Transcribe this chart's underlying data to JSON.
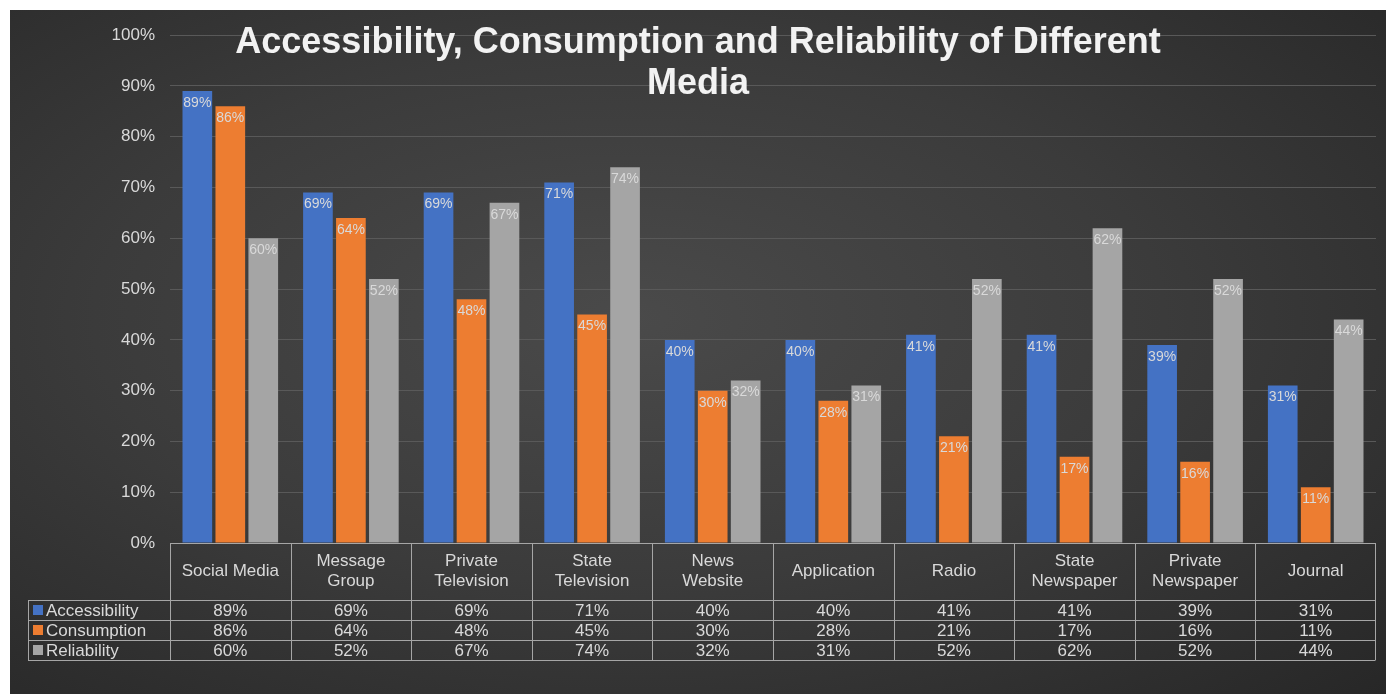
{
  "chart_data": {
    "type": "bar",
    "title": "Accessibility, Consumption and Reliability of Different Media",
    "categories": [
      "Social Media",
      "Message Group",
      "Private Television",
      "State Television",
      "News Website",
      "Application",
      "Radio",
      "State Newspaper",
      "Private Newspaper",
      "Journal"
    ],
    "series": [
      {
        "name": "Accessibility",
        "color": "#4472c4",
        "values": [
          89,
          69,
          69,
          71,
          40,
          40,
          41,
          41,
          39,
          31
        ],
        "value_labels": [
          "89%",
          "69%",
          "69%",
          "71%",
          "40%",
          "40%",
          "41%",
          "41%",
          "39%",
          "31%"
        ]
      },
      {
        "name": "Consumption",
        "color": "#ed7d31",
        "values": [
          86,
          64,
          48,
          45,
          30,
          28,
          21,
          17,
          16,
          11
        ],
        "value_labels": [
          "86%",
          "64%",
          "48%",
          "45%",
          "30%",
          "28%",
          "21%",
          "17%",
          "16%",
          "11%"
        ]
      },
      {
        "name": "Reliability",
        "color": "#a5a5a5",
        "values": [
          60,
          52,
          67,
          74,
          32,
          31,
          52,
          62,
          52,
          44
        ],
        "value_labels": [
          "60%",
          "52%",
          "67%",
          "74%",
          "32%",
          "31%",
          "52%",
          "62%",
          "52%",
          "44%"
        ]
      }
    ],
    "ylim": [
      0,
      100
    ],
    "yticks": [
      {
        "value": 0,
        "label": "0%"
      },
      {
        "value": 10,
        "label": "10%"
      },
      {
        "value": 20,
        "label": "20%"
      },
      {
        "value": 30,
        "label": "30%"
      },
      {
        "value": 40,
        "label": "40%"
      },
      {
        "value": 50,
        "label": "50%"
      },
      {
        "value": 60,
        "label": "60%"
      },
      {
        "value": 70,
        "label": "70%"
      },
      {
        "value": 80,
        "label": "80%"
      },
      {
        "value": 90,
        "label": "90%"
      },
      {
        "value": 100,
        "label": "100%"
      }
    ],
    "grid": "y",
    "legend": "bottom"
  }
}
